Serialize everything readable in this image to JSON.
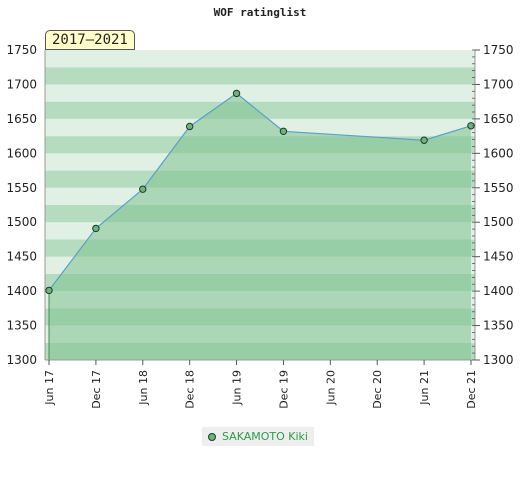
{
  "chart_data": {
    "type": "area",
    "title": "WOF ratinglist",
    "period_label": "2017–2021",
    "x_tick_labels": [
      "Jun 17",
      "Dec 17",
      "Jun 18",
      "Dec 18",
      "Jun 19",
      "Dec 19",
      "Jun 20",
      "Dec 20",
      "Jun 21",
      "Dec 21"
    ],
    "y_ticks": [
      1300,
      1350,
      1400,
      1450,
      1500,
      1550,
      1600,
      1650,
      1700,
      1750
    ],
    "ylim": [
      1300,
      1750
    ],
    "series": [
      {
        "name": "SAKAMOTO Kiki",
        "x_index": [
          0,
          1,
          2,
          3,
          4,
          5,
          8,
          9
        ],
        "values": [
          1401,
          1491,
          1548,
          1639,
          1687,
          1632,
          1619,
          1640
        ]
      }
    ],
    "legend_position": "bottom-center"
  },
  "colors": {
    "band_light": "#e0f0e4",
    "band_mid": "#b6dcc0",
    "band_dark": "#9fd0ad",
    "area_fill": "#7fc290",
    "line": "#5aa0c8",
    "marker_fill": "#6db37c",
    "legend_text": "#2e9a4d"
  }
}
